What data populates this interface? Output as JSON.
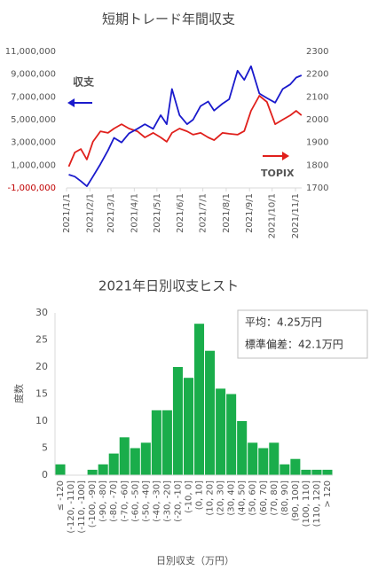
{
  "chart_data": [
    {
      "type": "line",
      "title": "短期トレード年間収支",
      "x": [
        "2021/1/4",
        "2021/1/12",
        "2021/1/20",
        "2021/1/28",
        "2021/2/5",
        "2021/2/15",
        "2021/2/25",
        "2021/3/5",
        "2021/3/15",
        "2021/3/25",
        "2021/4/5",
        "2021/4/15",
        "2021/4/26",
        "2021/5/6",
        "2021/5/14",
        "2021/5/21",
        "2021/5/31",
        "2021/6/10",
        "2021/6/18",
        "2021/6/28",
        "2021/7/8",
        "2021/7/16",
        "2021/7/27",
        "2021/8/5",
        "2021/8/16",
        "2021/8/25",
        "2021/9/3",
        "2021/9/14",
        "2021/9/24",
        "2021/10/5",
        "2021/10/15",
        "2021/10/25",
        "2021/11/2",
        "2021/11/9"
      ],
      "xticks": [
        "2021/1/1",
        "2021/2/1",
        "2021/3/1",
        "2021/4/1",
        "2021/5/1",
        "2021/6/1",
        "2021/7/1",
        "2021/8/1",
        "2021/9/1",
        "2021/10/1",
        "2021/11/1"
      ],
      "ylim": [
        -1000000,
        11000000
      ],
      "yticks": [
        {
          "value": -1000000,
          "label": "-1,000,000"
        },
        {
          "value": 1000000,
          "label": "1,000,000"
        },
        {
          "value": 3000000,
          "label": "3,000,000"
        },
        {
          "value": 5000000,
          "label": "5,000,000"
        },
        {
          "value": 7000000,
          "label": "7,000,000"
        },
        {
          "value": 9000000,
          "label": "9,000,000"
        },
        {
          "value": 11000000,
          "label": "11,000,000"
        }
      ],
      "y2lim": [
        1700,
        2300
      ],
      "y2ticks": [
        1700,
        1800,
        1900,
        2000,
        2100,
        2200,
        2300
      ],
      "negative_color": "#c00000",
      "series": [
        {
          "name": "収支",
          "color": "#1a1acc",
          "values": [
            170000,
            0,
            -400000,
            -850000,
            0,
            1100000,
            2300000,
            3400000,
            3000000,
            3800000,
            4200000,
            4600000,
            4200000,
            5400000,
            4600000,
            7700000,
            5400000,
            4600000,
            5000000,
            6200000,
            6600000,
            5800000,
            6400000,
            6800000,
            9300000,
            8500000,
            9700000,
            7300000,
            6900000,
            6500000,
            7700000,
            8100000,
            8700000,
            8900000
          ]
        },
        {
          "name": "TOPIX",
          "color": "#e0201c",
          "axis": "y2",
          "values": [
            1794,
            1856,
            1871,
            1825,
            1903,
            1949,
            1942,
            1961,
            1980,
            1961,
            1949,
            1922,
            1942,
            1922,
            1903,
            1942,
            1961,
            1949,
            1934,
            1942,
            1922,
            1910,
            1942,
            1938,
            1934,
            1950,
            2039,
            2105,
            2078,
            1980,
            2000,
            2019,
            2039,
            2019
          ]
        }
      ]
    },
    {
      "type": "bar",
      "title": "2021年日別収支ヒスト",
      "x_label": "日別収支（万円）",
      "y_label": "度数",
      "categories": [
        "≤ -120",
        "(-120, -110]",
        "(-110, -100]",
        "(-100, -90]",
        "(-90, -80]",
        "(-80, -70]",
        "(-70, -60]",
        "(-60, -50]",
        "(-50, -40]",
        "(-40, -30]",
        "(-30, -20]",
        "(-20, -10]",
        "(-10, 0]",
        "(0, 10]",
        "(10, 20]",
        "(20, 30]",
        "(30, 40]",
        "(40, 50]",
        "(50, 60]",
        "(60, 70]",
        "(70, 80]",
        "(80, 90]",
        "(90, 100]",
        "(100, 110]",
        "(110, 120]",
        "> 120"
      ],
      "values": [
        2,
        0,
        0,
        1,
        2,
        4,
        7,
        5,
        6,
        12,
        12,
        20,
        18,
        28,
        23,
        16,
        15,
        10,
        6,
        5,
        6,
        2,
        3,
        1,
        1,
        1
      ],
      "color": "#1aad4b",
      "ylim": [
        0,
        30
      ],
      "yticks": [
        0,
        5,
        10,
        15,
        20,
        25,
        30
      ],
      "stats": [
        "平均：4.25万円",
        "標準偏差：42.1万円"
      ]
    }
  ]
}
